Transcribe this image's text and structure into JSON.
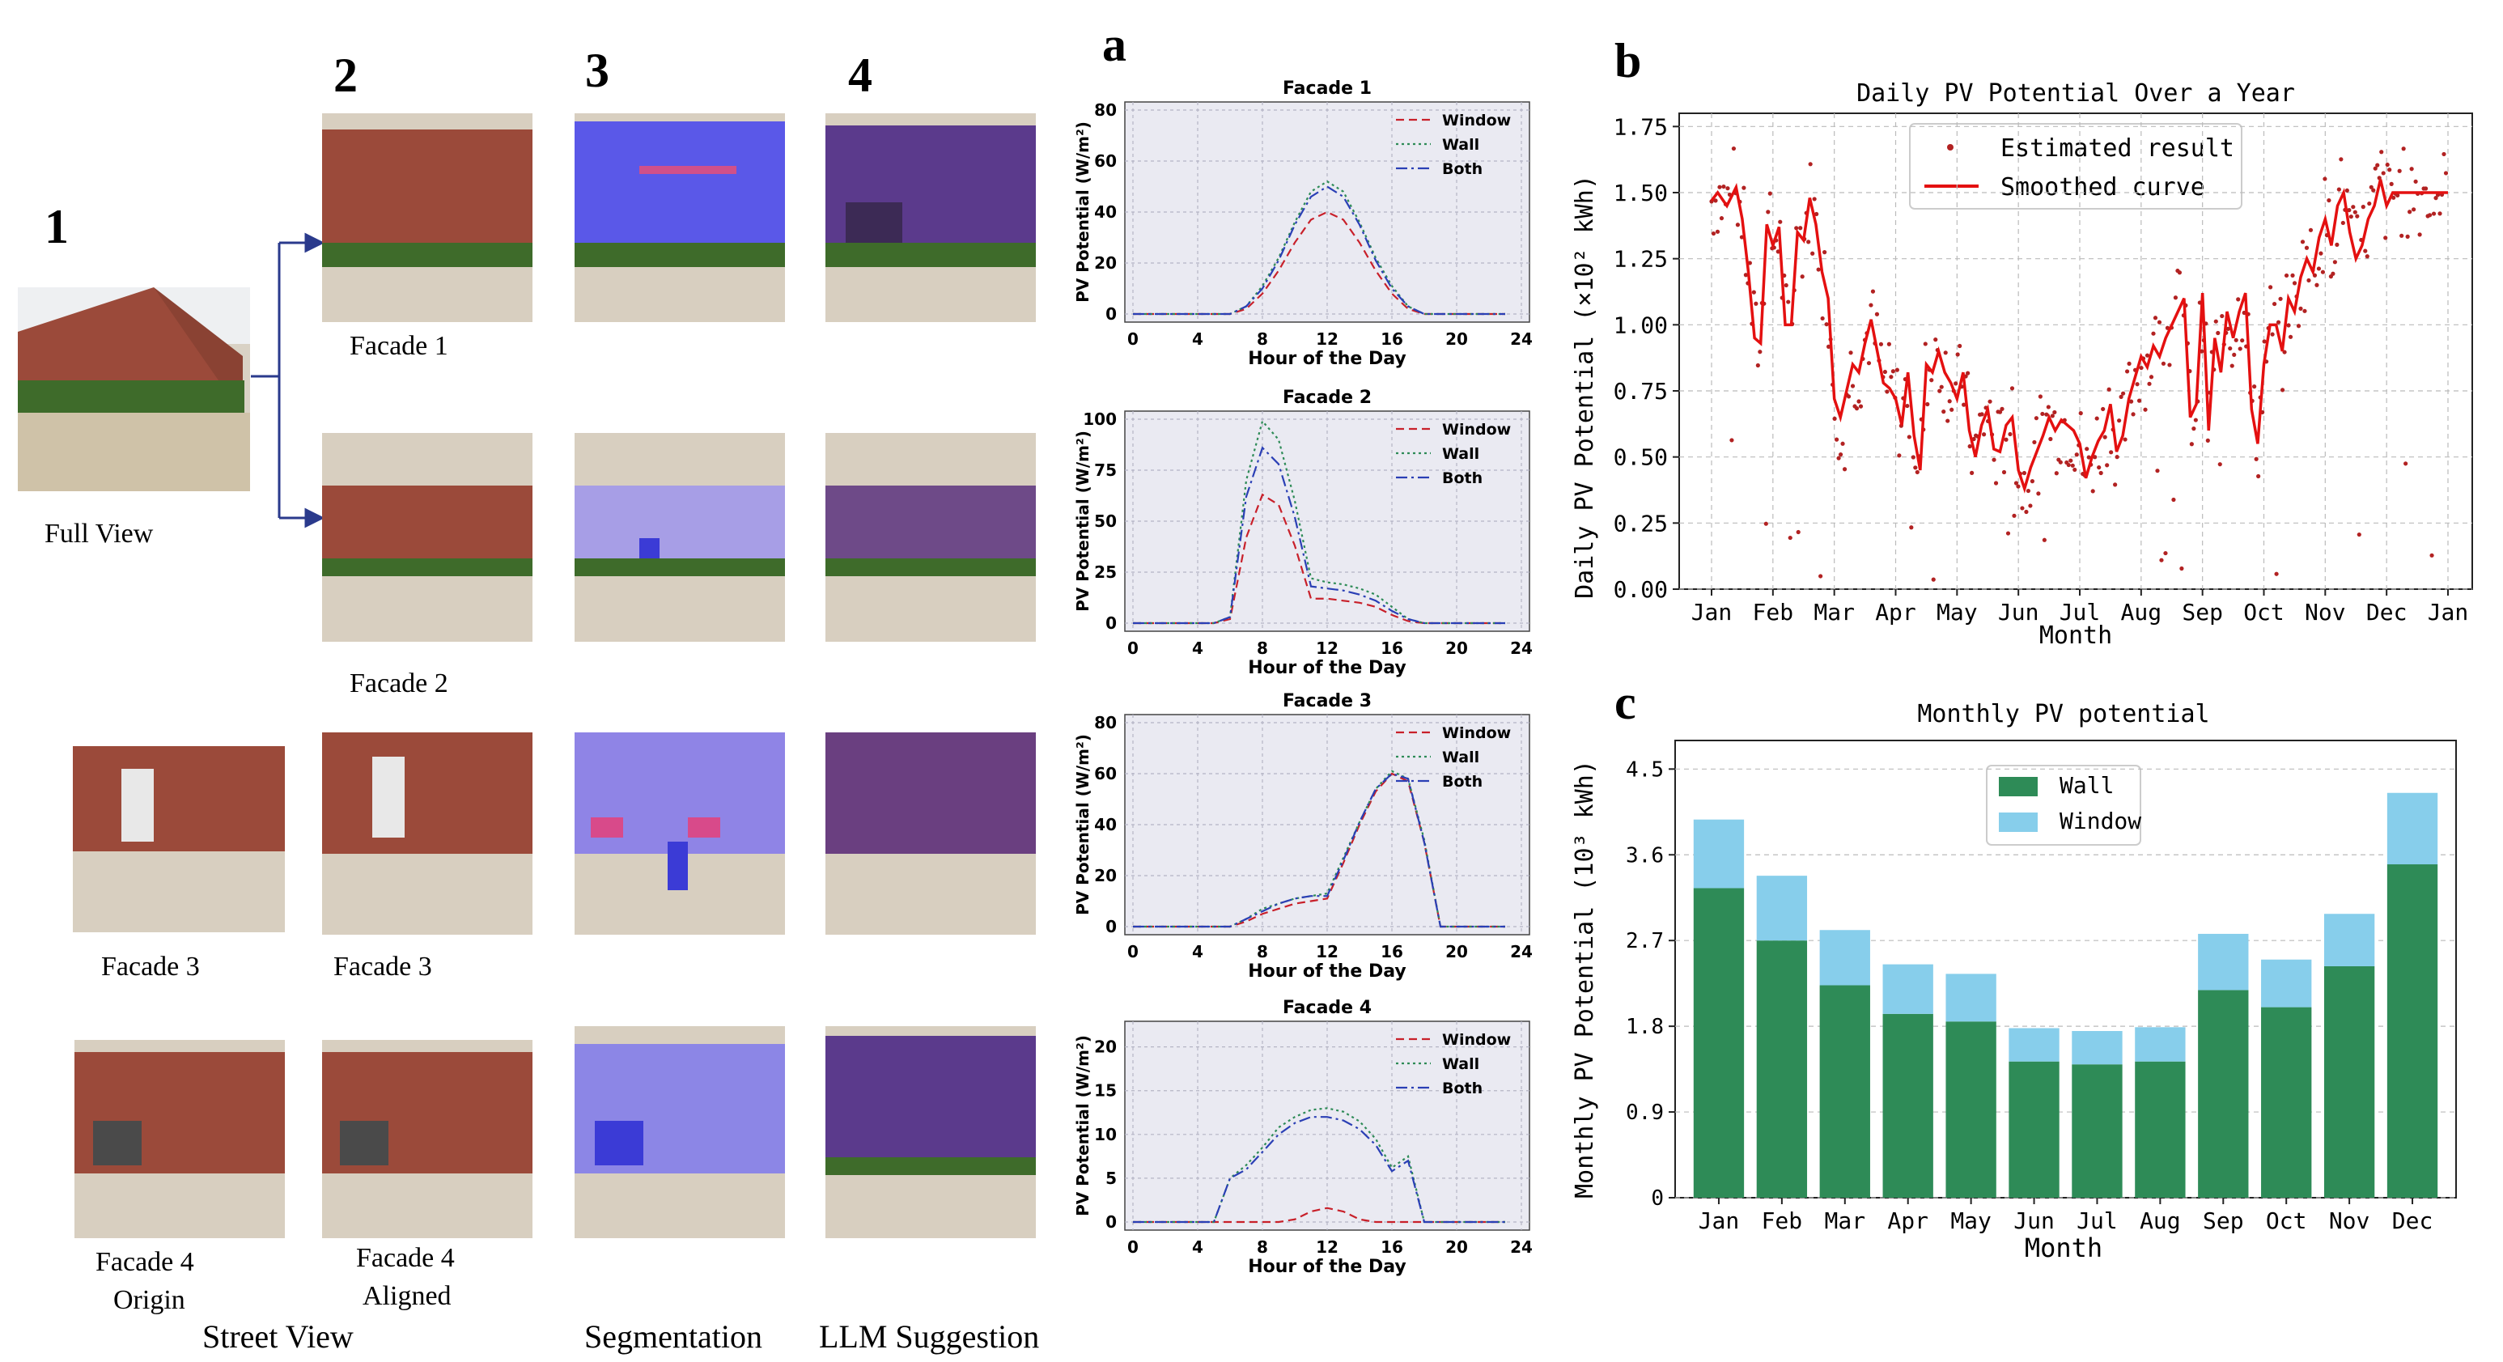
{
  "panel_a": {
    "letter": "a",
    "charts": [
      {
        "title": "Facade 1",
        "ylabel": "PV Potential (W/m²)",
        "xlabel": "Hour of the Day",
        "yticks": [
          0,
          20,
          40,
          60,
          80
        ],
        "ymax": 80,
        "xticks": [
          0,
          4,
          8,
          12,
          16,
          20,
          24
        ],
        "legend": [
          "Window",
          "Wall",
          "Both"
        ]
      },
      {
        "title": "Facade 2",
        "ylabel": "PV Potential (W/m²)",
        "xlabel": "Hour of the Day",
        "yticks": [
          0,
          25,
          50,
          75,
          100
        ],
        "ymax": 100,
        "xticks": [
          0,
          4,
          8,
          12,
          16,
          20,
          24
        ],
        "legend": [
          "Window",
          "Wall",
          "Both"
        ]
      },
      {
        "title": "Facade 3",
        "ylabel": "PV Potential (W/m²)",
        "xlabel": "Hour of the Day",
        "yticks": [
          0,
          20,
          40,
          60,
          80
        ],
        "ymax": 80,
        "xticks": [
          0,
          4,
          8,
          12,
          16,
          20,
          24
        ],
        "legend": [
          "Window",
          "Wall",
          "Both"
        ]
      },
      {
        "title": "Facade 4",
        "ylabel": "PV Potential (W/m²)",
        "xlabel": "Hour of the Day",
        "yticks": [
          0,
          5,
          10,
          15,
          20
        ],
        "ymax": 22,
        "xticks": [
          0,
          4,
          8,
          12,
          16,
          20,
          24
        ],
        "legend": [
          "Window",
          "Wall",
          "Both"
        ]
      }
    ]
  },
  "panel_b": {
    "letter": "b",
    "title": "Daily PV Potential Over a Year",
    "ylabel": "Daily PV Potential (×10² kWh)",
    "xlabel": "Month",
    "yticks": [
      "0.00",
      "0.25",
      "0.50",
      "0.75",
      "1.00",
      "1.25",
      "1.50",
      "1.75"
    ],
    "xticks": [
      "Jan",
      "Feb",
      "Mar",
      "Apr",
      "May",
      "Jun",
      "Jul",
      "Aug",
      "Sep",
      "Oct",
      "Nov",
      "Dec",
      "Jan"
    ],
    "legend": [
      "Estimated result",
      "Smoothed curve"
    ]
  },
  "panel_c": {
    "letter": "c",
    "title": "Monthly PV potential",
    "ylabel": "Monthly PV Potential (10³ kWh)",
    "xlabel": "Month",
    "yticks": [
      "0",
      "0.9",
      "1.8",
      "2.7",
      "3.6",
      "4.5"
    ],
    "legend": [
      "Wall",
      "Window"
    ]
  },
  "left": {
    "col_numbers": [
      "1",
      "2",
      "3",
      "4"
    ],
    "photo_labels": [
      "Full View",
      "Facade 1",
      "Facade 2",
      "Facade 3",
      "Facade 3",
      "Facade 4",
      "Origin",
      "Facade 4",
      "Aligned"
    ],
    "bottom_labels": [
      "Street View",
      "Segmentation",
      "LLM Suggestion"
    ]
  },
  "colors": {
    "window": "#c8202a",
    "wall": "#2e8b57",
    "both": "#2a3fb5",
    "bar_wall": "#2e8b57",
    "bar_window": "#87ceeb",
    "scatter": "#b22222",
    "smooth": "#e41010",
    "brick": "#9b4a3a",
    "seg": "#6a62e0",
    "llm": "#5b3a8c"
  },
  "chart_data": [
    {
      "type": "line",
      "title": "Facade 1",
      "xlabel": "Hour of the Day",
      "ylabel": "PV Potential (W/m²)",
      "ylim": [
        0,
        80
      ],
      "xlim": [
        0,
        24
      ],
      "x": [
        0,
        1,
        2,
        3,
        4,
        5,
        6,
        7,
        8,
        9,
        10,
        11,
        12,
        13,
        14,
        15,
        16,
        17,
        18,
        19,
        20,
        21,
        22,
        23
      ],
      "series": [
        {
          "name": "Window",
          "values": [
            0,
            0,
            0,
            0,
            0,
            0,
            0,
            2,
            8,
            17,
            28,
            37,
            40,
            37,
            28,
            17,
            8,
            2,
            0,
            0,
            0,
            0,
            0,
            0
          ]
        },
        {
          "name": "Wall",
          "values": [
            0,
            0,
            0,
            0,
            0,
            0,
            0,
            3,
            11,
            22,
            36,
            48,
            52,
            48,
            36,
            22,
            11,
            3,
            0,
            0,
            0,
            0,
            0,
            0
          ]
        },
        {
          "name": "Both",
          "values": [
            0,
            0,
            0,
            0,
            0,
            0,
            0,
            3,
            10,
            21,
            35,
            46,
            50,
            46,
            35,
            21,
            10,
            3,
            0,
            0,
            0,
            0,
            0,
            0
          ]
        }
      ]
    },
    {
      "type": "line",
      "title": "Facade 2",
      "xlabel": "Hour of the Day",
      "ylabel": "PV Potential (W/m²)",
      "ylim": [
        0,
        100
      ],
      "xlim": [
        0,
        24
      ],
      "x": [
        0,
        1,
        2,
        3,
        4,
        5,
        6,
        7,
        8,
        9,
        10,
        11,
        12,
        13,
        14,
        15,
        16,
        17,
        18,
        19,
        20,
        21,
        22,
        23
      ],
      "series": [
        {
          "name": "Window",
          "values": [
            0,
            0,
            0,
            0,
            0,
            0,
            2,
            42,
            63,
            58,
            38,
            12,
            12,
            11,
            10,
            8,
            4,
            1,
            0,
            0,
            0,
            0,
            0,
            0
          ]
        },
        {
          "name": "Wall",
          "values": [
            0,
            0,
            0,
            0,
            0,
            0,
            3,
            70,
            99,
            90,
            60,
            22,
            20,
            19,
            17,
            14,
            8,
            2,
            0,
            0,
            0,
            0,
            0,
            0
          ]
        },
        {
          "name": "Both",
          "values": [
            0,
            0,
            0,
            0,
            0,
            0,
            3,
            62,
            86,
            78,
            52,
            18,
            17,
            16,
            14,
            11,
            6,
            2,
            0,
            0,
            0,
            0,
            0,
            0
          ]
        }
      ]
    },
    {
      "type": "line",
      "title": "Facade 3",
      "xlabel": "Hour of the Day",
      "ylabel": "PV Potential (W/m²)",
      "ylim": [
        0,
        80
      ],
      "xlim": [
        0,
        24
      ],
      "x": [
        0,
        1,
        2,
        3,
        4,
        5,
        6,
        7,
        8,
        9,
        10,
        11,
        12,
        13,
        14,
        15,
        16,
        17,
        18,
        19,
        20,
        21,
        22,
        23
      ],
      "series": [
        {
          "name": "Window",
          "values": [
            0,
            0,
            0,
            0,
            0,
            0,
            0,
            2,
            5,
            7,
            9,
            10,
            11,
            25,
            40,
            53,
            60,
            57,
            33,
            0,
            0,
            0,
            0,
            0
          ]
        },
        {
          "name": "Wall",
          "values": [
            0,
            0,
            0,
            0,
            0,
            0,
            0,
            3,
            7,
            9,
            11,
            12,
            13,
            27,
            41,
            54,
            61,
            58,
            34,
            0,
            0,
            0,
            0,
            0
          ]
        },
        {
          "name": "Both",
          "values": [
            0,
            0,
            0,
            0,
            0,
            0,
            0,
            3,
            6,
            9,
            11,
            12,
            12,
            26,
            41,
            54,
            60,
            58,
            33,
            0,
            0,
            0,
            0,
            0
          ]
        }
      ]
    },
    {
      "type": "line",
      "title": "Facade 4",
      "xlabel": "Hour of the Day",
      "ylabel": "PV Potential (W/m²)",
      "ylim": [
        0,
        22
      ],
      "xlim": [
        0,
        24
      ],
      "x": [
        0,
        1,
        2,
        3,
        4,
        5,
        6,
        7,
        8,
        9,
        10,
        11,
        12,
        13,
        14,
        15,
        16,
        17,
        18,
        19,
        20,
        21,
        22,
        23
      ],
      "series": [
        {
          "name": "Window",
          "values": [
            0,
            0,
            0,
            0,
            0,
            0,
            0,
            0,
            0,
            0,
            0.3,
            1.2,
            1.6,
            1.2,
            0.3,
            0,
            0,
            0,
            0,
            0,
            0,
            0,
            0,
            0
          ]
        },
        {
          "name": "Wall",
          "values": [
            0,
            0,
            0,
            0,
            0,
            0,
            5,
            6.5,
            8.5,
            10.8,
            12,
            12.8,
            13,
            12.6,
            11.5,
            9.5,
            6.2,
            7.5,
            0,
            0,
            0,
            0,
            0,
            0
          ]
        },
        {
          "name": "Both",
          "values": [
            0,
            0,
            0,
            0,
            0,
            0,
            5,
            6,
            8,
            10,
            11.3,
            12,
            12,
            11.6,
            10.6,
            8.8,
            5.8,
            7,
            0,
            0,
            0,
            0,
            0,
            0
          ]
        }
      ]
    },
    {
      "type": "scatter",
      "title": "Daily PV Potential Over a Year",
      "xlabel": "Month",
      "ylabel": "Daily PV Potential (×10² kWh)",
      "ylim": [
        0,
        1.8
      ],
      "categories": [
        "Jan",
        "Feb",
        "Mar",
        "Apr",
        "May",
        "Jun",
        "Jul",
        "Aug",
        "Sep",
        "Oct",
        "Nov",
        "Dec",
        "Jan"
      ],
      "series": [
        {
          "name": "Smoothed curve",
          "x": [
            0,
            0.1,
            0.25,
            0.4,
            0.5,
            0.6,
            0.7,
            0.8,
            0.9,
            1.0,
            1.1,
            1.2,
            1.3,
            1.4,
            1.5,
            1.6,
            1.7,
            1.8,
            1.9,
            2.0,
            2.1,
            2.2,
            2.3,
            2.4,
            2.5,
            2.6,
            2.7,
            2.8,
            2.9,
            3.0,
            3.1,
            3.2,
            3.3,
            3.4,
            3.5,
            3.6,
            3.7,
            3.8,
            3.9,
            4.0,
            4.1,
            4.2,
            4.3,
            4.4,
            4.5,
            4.6,
            4.7,
            4.8,
            4.9,
            5.0,
            5.1,
            5.2,
            5.3,
            5.4,
            5.5,
            5.6,
            5.7,
            5.8,
            5.9,
            6.0,
            6.1,
            6.2,
            6.3,
            6.4,
            6.5,
            6.6,
            6.7,
            6.8,
            6.9,
            7.0,
            7.1,
            7.2,
            7.3,
            7.4,
            7.5,
            7.6,
            7.7,
            7.8,
            7.9,
            8.0,
            8.1,
            8.2,
            8.3,
            8.4,
            8.5,
            8.6,
            8.7,
            8.8,
            8.9,
            9.0,
            9.1,
            9.2,
            9.3,
            9.4,
            9.5,
            9.6,
            9.7,
            9.8,
            9.9,
            10.0,
            10.1,
            10.2,
            10.3,
            10.4,
            10.5,
            10.6,
            10.7,
            10.8,
            10.9,
            11.0,
            11.1,
            11.2,
            11.3,
            11.4,
            11.5,
            11.6,
            11.7,
            11.8,
            11.9,
            12.0
          ],
          "values": [
            1.47,
            1.5,
            1.45,
            1.52,
            1.4,
            1.2,
            0.95,
            0.93,
            1.38,
            1.3,
            1.37,
            1.0,
            1.0,
            1.35,
            1.32,
            1.48,
            1.38,
            1.2,
            1.1,
            0.72,
            0.65,
            0.75,
            0.85,
            0.82,
            0.93,
            1.02,
            0.9,
            0.78,
            0.76,
            0.72,
            0.62,
            0.82,
            0.58,
            0.45,
            0.85,
            0.82,
            0.9,
            0.82,
            0.78,
            0.72,
            0.82,
            0.6,
            0.5,
            0.62,
            0.68,
            0.53,
            0.52,
            0.62,
            0.65,
            0.45,
            0.38,
            0.46,
            0.52,
            0.58,
            0.65,
            0.6,
            0.64,
            0.62,
            0.6,
            0.55,
            0.42,
            0.5,
            0.56,
            0.6,
            0.7,
            0.52,
            0.58,
            0.72,
            0.8,
            0.88,
            0.84,
            0.92,
            0.88,
            0.95,
            1.0,
            1.05,
            1.1,
            0.65,
            0.7,
            1.12,
            0.6,
            0.95,
            0.82,
            1.05,
            0.95,
            1.05,
            1.12,
            0.68,
            0.55,
            0.85,
            1.0,
            1.0,
            0.9,
            1.1,
            1.05,
            1.18,
            1.25,
            1.2,
            1.33,
            1.4,
            1.3,
            1.45,
            1.5,
            1.35,
            1.25,
            1.3,
            1.4,
            1.45,
            1.55,
            1.45,
            1.5,
            1.5,
            1.5,
            1.5,
            1.5,
            1.5,
            1.5,
            1.5,
            1.5,
            1.5
          ]
        },
        {
          "name": "Estimated result",
          "note": "~365 daily scatter points following the smoothed curve with spread"
        }
      ]
    },
    {
      "type": "bar",
      "title": "Monthly PV potential",
      "xlabel": "Month",
      "ylabel": "Monthly PV Potential (10³ kWh)",
      "ylim": [
        0,
        4.8
      ],
      "stacked": true,
      "categories": [
        "Jan",
        "Feb",
        "Mar",
        "Apr",
        "May",
        "Jun",
        "Jul",
        "Aug",
        "Sep",
        "Oct",
        "Nov",
        "Dec"
      ],
      "series": [
        {
          "name": "Wall",
          "values": [
            3.25,
            2.7,
            2.23,
            1.93,
            1.85,
            1.43,
            1.4,
            1.43,
            2.18,
            2.0,
            2.43,
            3.5
          ]
        },
        {
          "name": "Window",
          "values": [
            0.72,
            0.68,
            0.58,
            0.52,
            0.5,
            0.35,
            0.35,
            0.36,
            0.59,
            0.5,
            0.55,
            0.75
          ]
        }
      ]
    }
  ]
}
